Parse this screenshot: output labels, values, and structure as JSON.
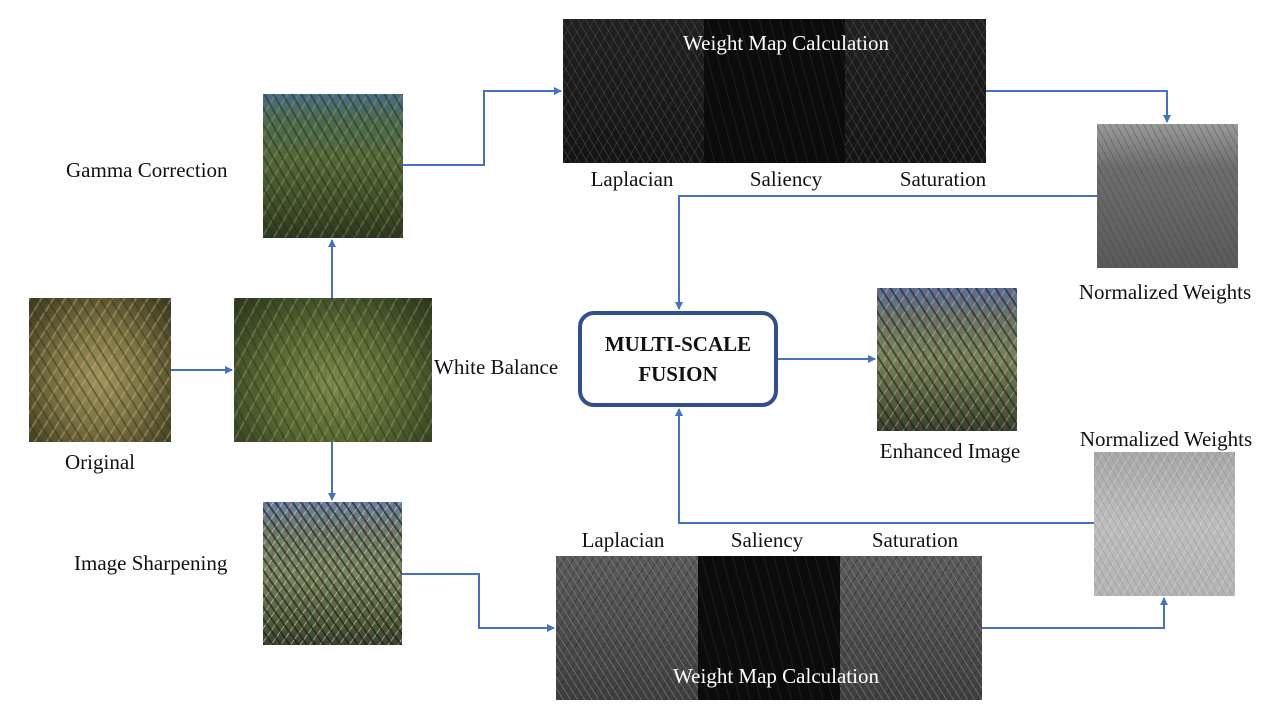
{
  "nodes": {
    "original": "Original",
    "white_balance": "White Balance",
    "gamma_correction": "Gamma Correction",
    "image_sharpening": "Image Sharpening",
    "fusion_line1": "MULTI-SCALE",
    "fusion_line2": "FUSION",
    "enhanced_image": "Enhanced Image"
  },
  "top_branch": {
    "weight_map_title": "Weight Map Calculation",
    "maps": [
      "Laplacian",
      "Saliency",
      "Saturation"
    ],
    "normalized_weights": "Normalized Weights"
  },
  "bottom_branch": {
    "weight_map_title": "Weight Map Calculation",
    "maps": [
      "Laplacian",
      "Saliency",
      "Saturation"
    ],
    "normalized_weights": "Normalized Weights"
  },
  "colors": {
    "arrow": "#4472c4",
    "fusion_border": "#2f4f8f"
  }
}
